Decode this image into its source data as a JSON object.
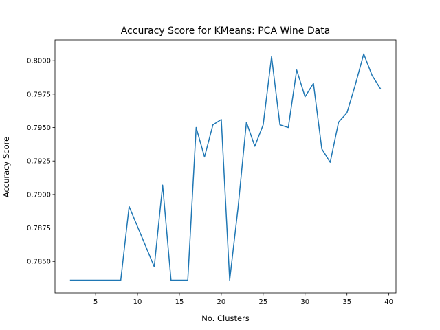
{
  "chart_data": {
    "type": "line",
    "title": "Accuracy Score for KMeans: PCA Wine Data",
    "xlabel": "No. Clusters",
    "ylabel": "Accuracy Score",
    "xlim": [
      0.15,
      40.85
    ],
    "ylim": [
      0.78265,
      0.80155
    ],
    "xticks": [
      5,
      10,
      15,
      20,
      25,
      30,
      35,
      40
    ],
    "yticks": [
      0.785,
      0.7875,
      0.79,
      0.7925,
      0.795,
      0.7975,
      0.8
    ],
    "ytick_labels": [
      "0.7850",
      "0.7875",
      "0.7900",
      "0.7925",
      "0.7950",
      "0.7975",
      "0.8000"
    ],
    "grid": false,
    "series": [
      {
        "color": "#1f77b4",
        "x": [
          2,
          3,
          4,
          5,
          6,
          7,
          8,
          9,
          10,
          11,
          12,
          13,
          14,
          15,
          16,
          17,
          18,
          19,
          20,
          21,
          22,
          23,
          24,
          25,
          26,
          27,
          28,
          29,
          30,
          31,
          32,
          33,
          34,
          35,
          36,
          37,
          38,
          39
        ],
        "y": [
          0.7836,
          0.7836,
          0.7836,
          0.7836,
          0.7836,
          0.7836,
          0.7836,
          0.7891,
          0.7876,
          0.7861,
          0.7846,
          0.7907,
          0.7836,
          0.7836,
          0.7836,
          0.795,
          0.7928,
          0.7952,
          0.7956,
          0.7836,
          0.789,
          0.7954,
          0.7936,
          0.7952,
          0.8003,
          0.7952,
          0.795,
          0.7993,
          0.7973,
          0.7983,
          0.7934,
          0.7924,
          0.7954,
          0.7961,
          0.7982,
          0.8005,
          0.7989,
          0.7979
        ]
      }
    ]
  }
}
